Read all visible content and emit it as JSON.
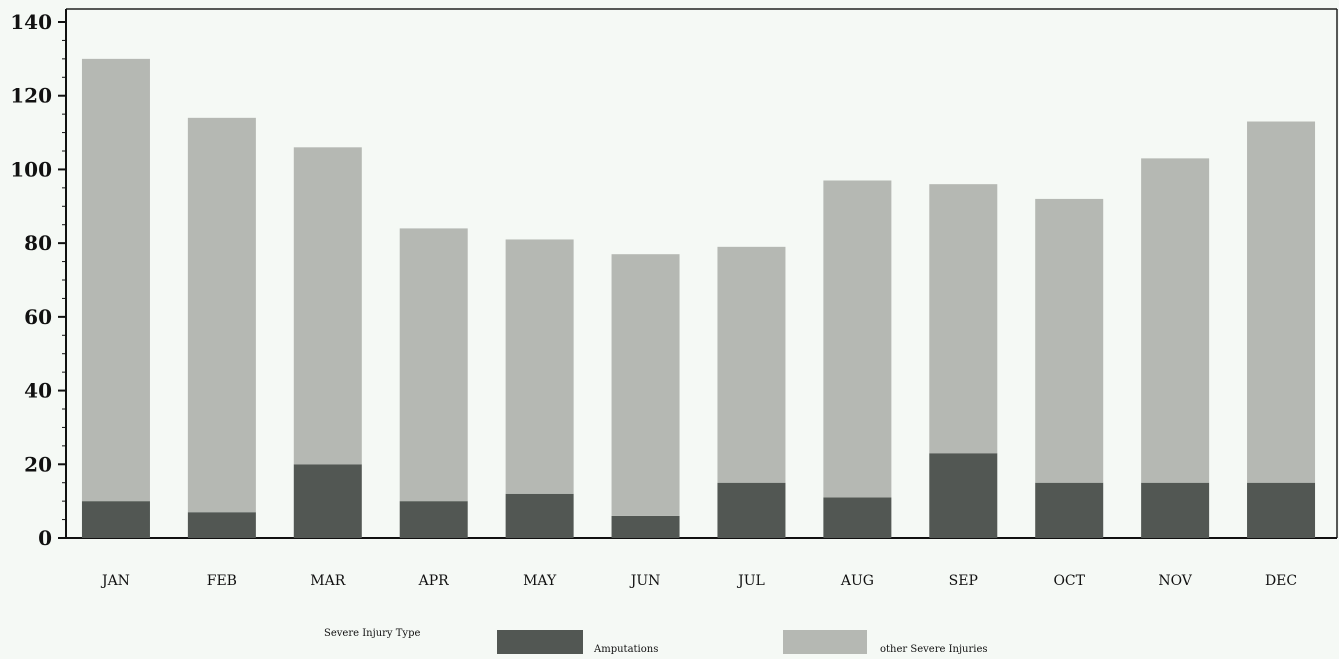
{
  "chart_data": {
    "type": "bar",
    "stacked": true,
    "categories": [
      "JAN",
      "FEB",
      "MAR",
      "APR",
      "MAY",
      "JUN",
      "JUL",
      "AUG",
      "SEP",
      "OCT",
      "NOV",
      "DEC"
    ],
    "series": [
      {
        "name": "Amputations",
        "color": "#525753",
        "values": [
          10,
          7,
          20,
          10,
          12,
          6,
          15,
          11,
          23,
          15,
          15,
          15
        ]
      },
      {
        "name": "other Severe Injuries",
        "color": "#b5b8b3",
        "values": [
          120,
          107,
          86,
          74,
          69,
          71,
          64,
          86,
          73,
          77,
          88,
          98
        ]
      }
    ],
    "ylim": [
      0,
      140
    ],
    "yticks": [
      0,
      20,
      40,
      60,
      80,
      100,
      120,
      140
    ],
    "grid": false,
    "legend": {
      "title": "Severe Injury Type",
      "position": "bottom"
    }
  }
}
